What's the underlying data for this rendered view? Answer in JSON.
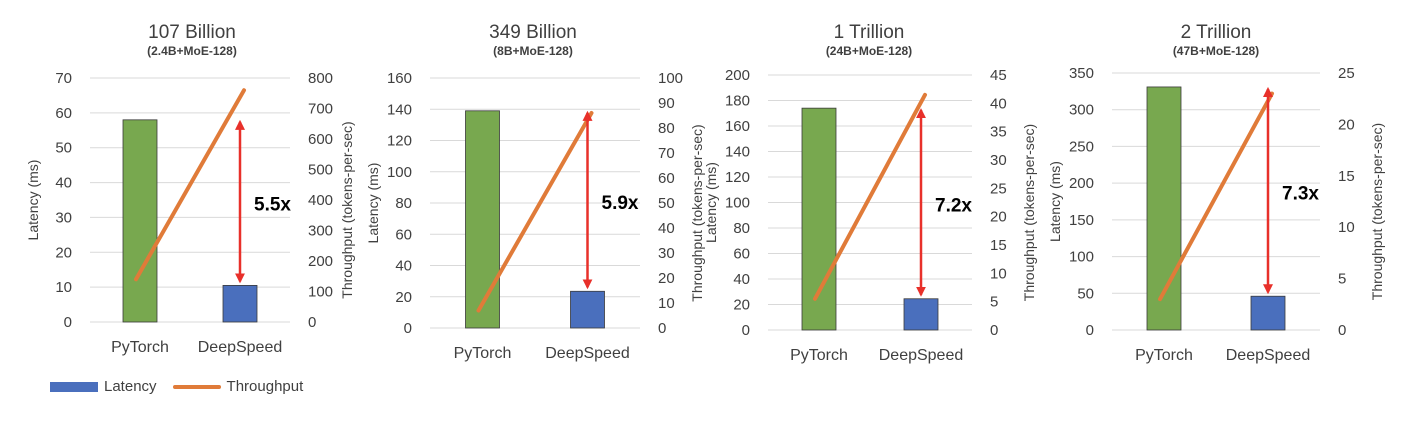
{
  "colors": {
    "pytorch_bar": "#78a84f",
    "deepspeed_bar": "#4a6fbd",
    "throughput_line": "#e07b39",
    "arrow": "#e8302a",
    "grid": "#d9d9d9",
    "text": "#404040"
  },
  "legend": {
    "latency_label": "Latency",
    "throughput_label": "Throughput"
  },
  "chart_data": [
    {
      "type": "bar",
      "title": "107 Billion",
      "subtitle": "(2.4B+MoE-128)",
      "categories": [
        "PyTorch",
        "DeepSpeed"
      ],
      "ylabel": "Latency (ms)",
      "y2label": "Throughput (tokens-per-sec)",
      "ylim": [
        0,
        70
      ],
      "yticks": [
        0,
        10,
        20,
        30,
        40,
        50,
        60,
        70
      ],
      "y2lim": [
        0,
        800
      ],
      "y2ticks": [
        0,
        100,
        200,
        300,
        400,
        500,
        600,
        700,
        800
      ],
      "series": [
        {
          "name": "Latency",
          "kind": "bar",
          "axis": "left",
          "values": [
            58,
            10.5
          ]
        },
        {
          "name": "Throughput",
          "kind": "line",
          "axis": "right",
          "values": [
            140,
            760
          ]
        }
      ],
      "annotation": {
        "text": "5.5x",
        "from": 10.5,
        "to": 58
      }
    },
    {
      "type": "bar",
      "title": "349 Billion",
      "subtitle": "(8B+MoE-128)",
      "categories": [
        "PyTorch",
        "DeepSpeed"
      ],
      "ylabel": "Latency (ms)",
      "y2label": "Throughput (tokens-per-sec)",
      "ylim": [
        0,
        160
      ],
      "yticks": [
        0,
        20,
        40,
        60,
        80,
        100,
        120,
        140,
        160
      ],
      "y2lim": [
        0,
        100
      ],
      "y2ticks": [
        0,
        10,
        20,
        30,
        40,
        50,
        60,
        70,
        80,
        90,
        100
      ],
      "series": [
        {
          "name": "Latency",
          "kind": "bar",
          "axis": "left",
          "values": [
            139,
            23.5
          ]
        },
        {
          "name": "Throughput",
          "kind": "line",
          "axis": "right",
          "values": [
            7,
            86
          ]
        }
      ],
      "annotation": {
        "text": "5.9x",
        "from": 23.5,
        "to": 139
      }
    },
    {
      "type": "bar",
      "title": "1 Trillion",
      "subtitle": "(24B+MoE-128)",
      "categories": [
        "PyTorch",
        "DeepSpeed"
      ],
      "ylabel": "Latency (ms)",
      "y2label": "Throughput (tokens-per-sec)",
      "ylim": [
        0,
        200
      ],
      "yticks": [
        0,
        20,
        40,
        60,
        80,
        100,
        120,
        140,
        160,
        180,
        200
      ],
      "y2lim": [
        0,
        45
      ],
      "y2ticks": [
        0,
        5,
        10,
        15,
        20,
        25,
        30,
        35,
        40,
        45
      ],
      "series": [
        {
          "name": "Latency",
          "kind": "bar",
          "axis": "left",
          "values": [
            174,
            24.5
          ]
        },
        {
          "name": "Throughput",
          "kind": "line",
          "axis": "right",
          "values": [
            5.5,
            41.5
          ]
        }
      ],
      "annotation": {
        "text": "7.2x",
        "from": 24.5,
        "to": 174
      }
    },
    {
      "type": "bar",
      "title": "2 Trillion",
      "subtitle": "(47B+MoE-128)",
      "categories": [
        "PyTorch",
        "DeepSpeed"
      ],
      "ylabel": "Latency (ms)",
      "y2label": "Throughput (tokens-per-sec)",
      "ylim": [
        0,
        350
      ],
      "yticks": [
        0,
        50,
        100,
        150,
        200,
        250,
        300,
        350
      ],
      "y2lim": [
        0,
        25
      ],
      "y2ticks": [
        0,
        5,
        10,
        15,
        20,
        25
      ],
      "series": [
        {
          "name": "Latency",
          "kind": "bar",
          "axis": "left",
          "values": [
            331,
            46
          ]
        },
        {
          "name": "Throughput",
          "kind": "line",
          "axis": "right",
          "values": [
            3,
            23
          ]
        }
      ],
      "annotation": {
        "text": "7.3x",
        "from": 46,
        "to": 331
      }
    }
  ]
}
